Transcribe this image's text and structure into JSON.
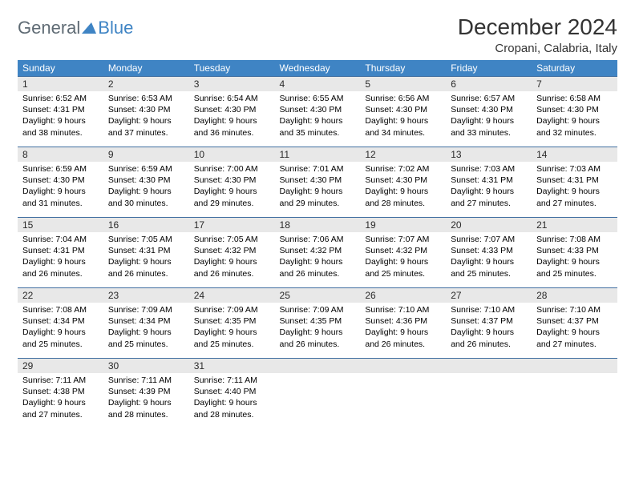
{
  "logo": {
    "general": "General",
    "blue": "Blue"
  },
  "header": {
    "title": "December 2024",
    "location": "Cropani, Calabria, Italy"
  },
  "colors": {
    "header_bg": "#3f84c4",
    "header_text": "#ffffff",
    "daybar_bg": "#e8e8e8",
    "daybar_border": "#3f6ea0",
    "logo_gray": "#5f6b74",
    "logo_blue": "#3f84c4"
  },
  "weekday_labels": [
    "Sunday",
    "Monday",
    "Tuesday",
    "Wednesday",
    "Thursday",
    "Friday",
    "Saturday"
  ],
  "labels": {
    "sunrise_prefix": "Sunrise: ",
    "sunset_prefix": "Sunset: ",
    "daylight_prefix": "Daylight: "
  },
  "weeks": [
    [
      {
        "n": "1",
        "sunrise": "6:52 AM",
        "sunset": "4:31 PM",
        "daylight": "9 hours and 38 minutes."
      },
      {
        "n": "2",
        "sunrise": "6:53 AM",
        "sunset": "4:30 PM",
        "daylight": "9 hours and 37 minutes."
      },
      {
        "n": "3",
        "sunrise": "6:54 AM",
        "sunset": "4:30 PM",
        "daylight": "9 hours and 36 minutes."
      },
      {
        "n": "4",
        "sunrise": "6:55 AM",
        "sunset": "4:30 PM",
        "daylight": "9 hours and 35 minutes."
      },
      {
        "n": "5",
        "sunrise": "6:56 AM",
        "sunset": "4:30 PM",
        "daylight": "9 hours and 34 minutes."
      },
      {
        "n": "6",
        "sunrise": "6:57 AM",
        "sunset": "4:30 PM",
        "daylight": "9 hours and 33 minutes."
      },
      {
        "n": "7",
        "sunrise": "6:58 AM",
        "sunset": "4:30 PM",
        "daylight": "9 hours and 32 minutes."
      }
    ],
    [
      {
        "n": "8",
        "sunrise": "6:59 AM",
        "sunset": "4:30 PM",
        "daylight": "9 hours and 31 minutes."
      },
      {
        "n": "9",
        "sunrise": "6:59 AM",
        "sunset": "4:30 PM",
        "daylight": "9 hours and 30 minutes."
      },
      {
        "n": "10",
        "sunrise": "7:00 AM",
        "sunset": "4:30 PM",
        "daylight": "9 hours and 29 minutes."
      },
      {
        "n": "11",
        "sunrise": "7:01 AM",
        "sunset": "4:30 PM",
        "daylight": "9 hours and 29 minutes."
      },
      {
        "n": "12",
        "sunrise": "7:02 AM",
        "sunset": "4:30 PM",
        "daylight": "9 hours and 28 minutes."
      },
      {
        "n": "13",
        "sunrise": "7:03 AM",
        "sunset": "4:31 PM",
        "daylight": "9 hours and 27 minutes."
      },
      {
        "n": "14",
        "sunrise": "7:03 AM",
        "sunset": "4:31 PM",
        "daylight": "9 hours and 27 minutes."
      }
    ],
    [
      {
        "n": "15",
        "sunrise": "7:04 AM",
        "sunset": "4:31 PM",
        "daylight": "9 hours and 26 minutes."
      },
      {
        "n": "16",
        "sunrise": "7:05 AM",
        "sunset": "4:31 PM",
        "daylight": "9 hours and 26 minutes."
      },
      {
        "n": "17",
        "sunrise": "7:05 AM",
        "sunset": "4:32 PM",
        "daylight": "9 hours and 26 minutes."
      },
      {
        "n": "18",
        "sunrise": "7:06 AM",
        "sunset": "4:32 PM",
        "daylight": "9 hours and 26 minutes."
      },
      {
        "n": "19",
        "sunrise": "7:07 AM",
        "sunset": "4:32 PM",
        "daylight": "9 hours and 25 minutes."
      },
      {
        "n": "20",
        "sunrise": "7:07 AM",
        "sunset": "4:33 PM",
        "daylight": "9 hours and 25 minutes."
      },
      {
        "n": "21",
        "sunrise": "7:08 AM",
        "sunset": "4:33 PM",
        "daylight": "9 hours and 25 minutes."
      }
    ],
    [
      {
        "n": "22",
        "sunrise": "7:08 AM",
        "sunset": "4:34 PM",
        "daylight": "9 hours and 25 minutes."
      },
      {
        "n": "23",
        "sunrise": "7:09 AM",
        "sunset": "4:34 PM",
        "daylight": "9 hours and 25 minutes."
      },
      {
        "n": "24",
        "sunrise": "7:09 AM",
        "sunset": "4:35 PM",
        "daylight": "9 hours and 25 minutes."
      },
      {
        "n": "25",
        "sunrise": "7:09 AM",
        "sunset": "4:35 PM",
        "daylight": "9 hours and 26 minutes."
      },
      {
        "n": "26",
        "sunrise": "7:10 AM",
        "sunset": "4:36 PM",
        "daylight": "9 hours and 26 minutes."
      },
      {
        "n": "27",
        "sunrise": "7:10 AM",
        "sunset": "4:37 PM",
        "daylight": "9 hours and 26 minutes."
      },
      {
        "n": "28",
        "sunrise": "7:10 AM",
        "sunset": "4:37 PM",
        "daylight": "9 hours and 27 minutes."
      }
    ],
    [
      {
        "n": "29",
        "sunrise": "7:11 AM",
        "sunset": "4:38 PM",
        "daylight": "9 hours and 27 minutes."
      },
      {
        "n": "30",
        "sunrise": "7:11 AM",
        "sunset": "4:39 PM",
        "daylight": "9 hours and 28 minutes."
      },
      {
        "n": "31",
        "sunrise": "7:11 AM",
        "sunset": "4:40 PM",
        "daylight": "9 hours and 28 minutes."
      },
      null,
      null,
      null,
      null
    ]
  ]
}
